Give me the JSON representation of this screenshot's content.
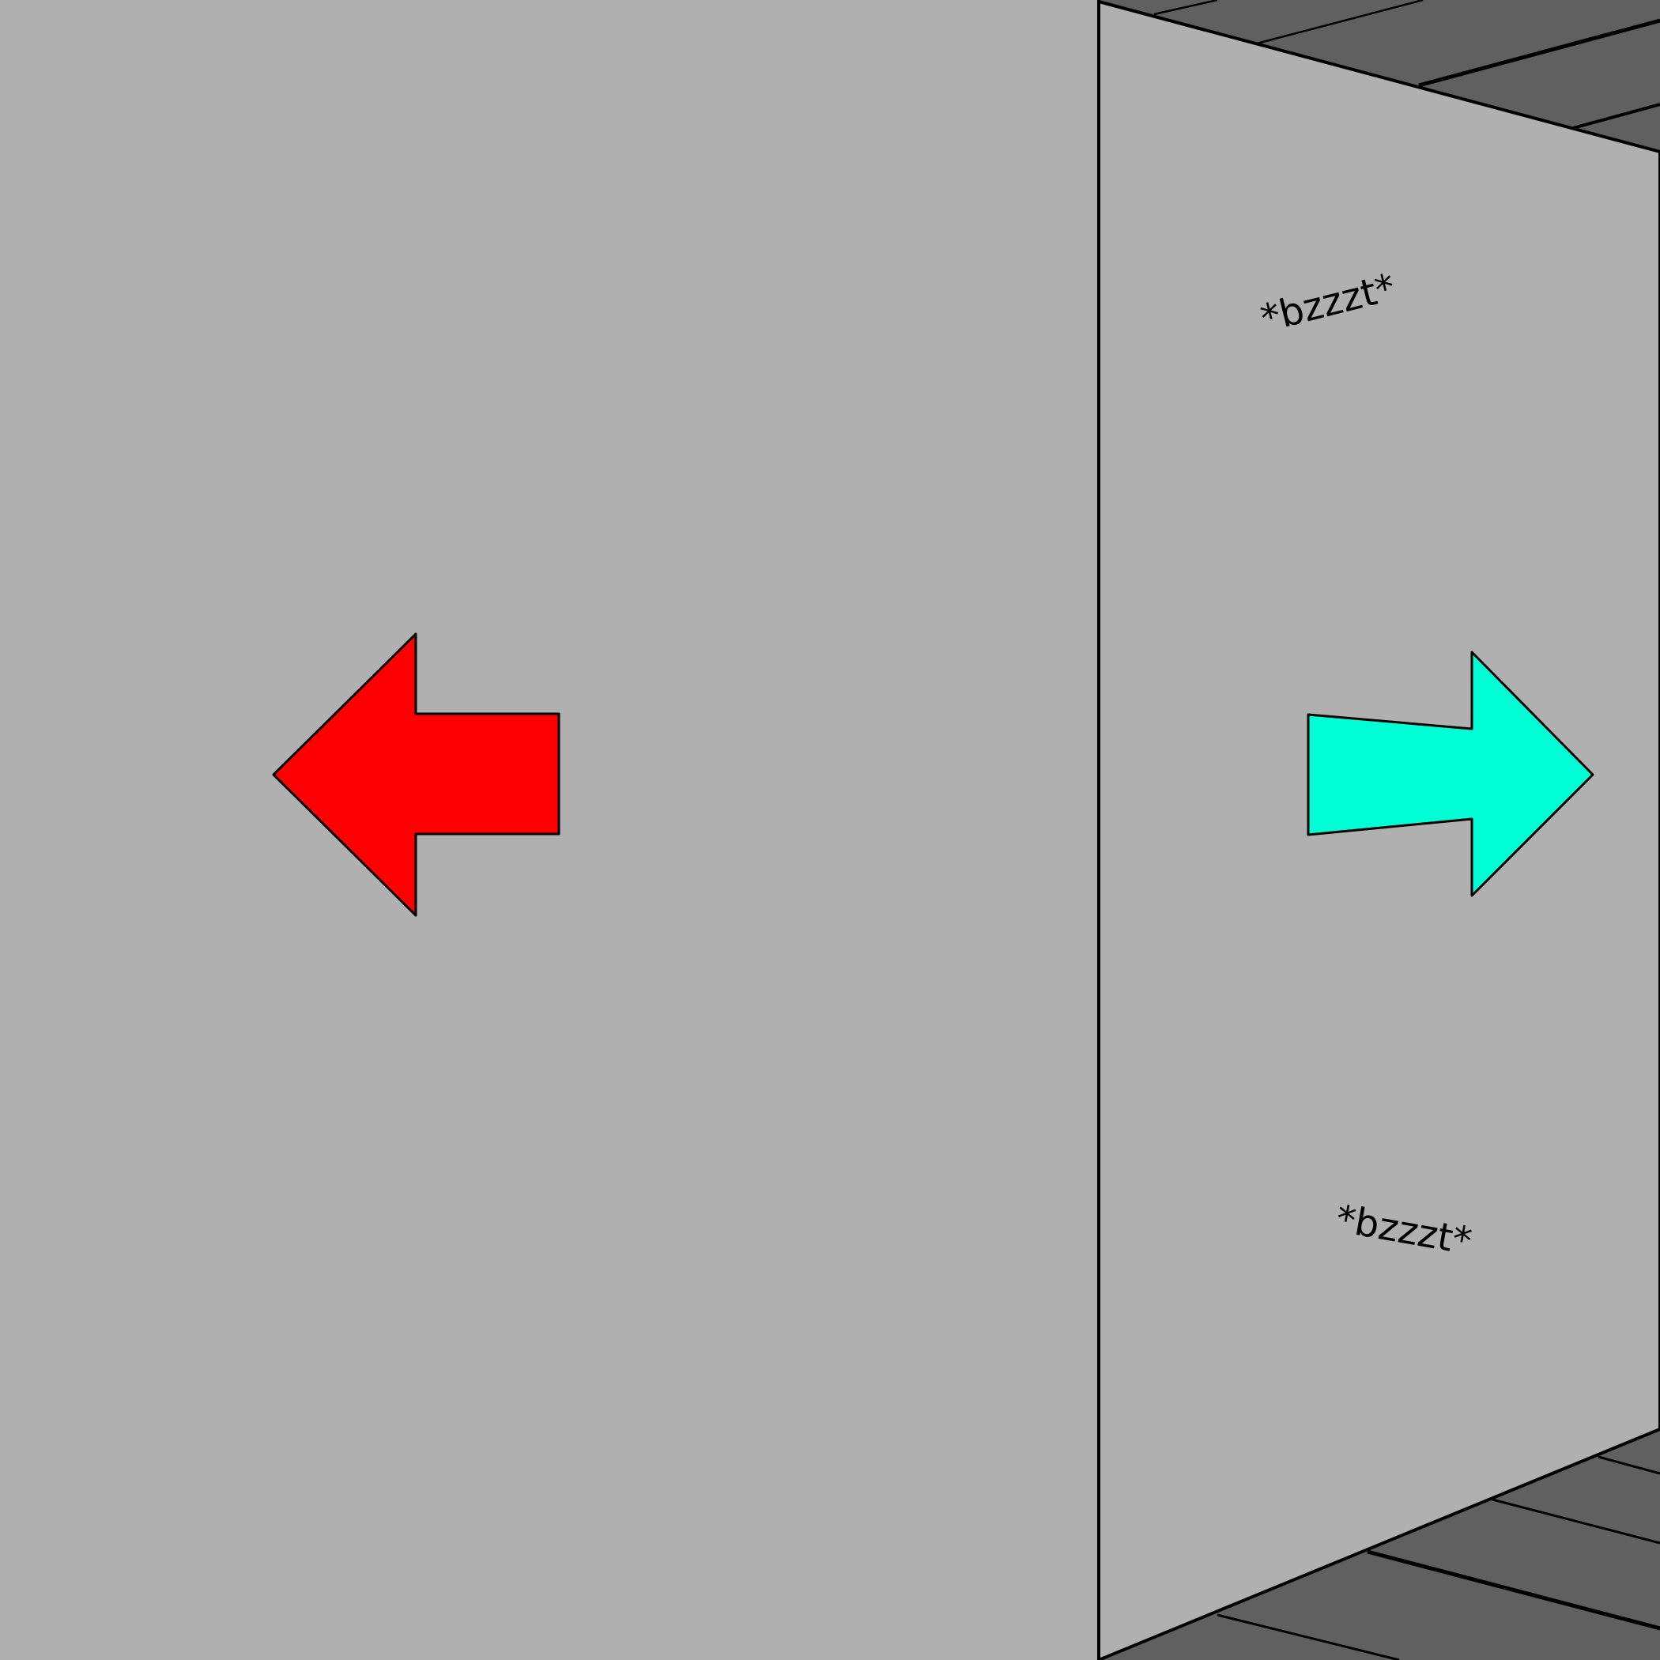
{
  "scene": {
    "left_wall": {
      "color": "#b0b0b0",
      "arrow": {
        "icon": "arrow-left-icon",
        "color": "#ff0000",
        "outline": "#000000"
      }
    },
    "right_wall": {
      "color": "#b0b0b0",
      "arrow": {
        "icon": "arrow-right-icon",
        "color": "#00ffd5",
        "outline": "#000000"
      },
      "captions": {
        "top": "*bzzzt*",
        "bottom": "*bzzzt*"
      }
    },
    "floor": {
      "color": "#606060"
    },
    "ceiling": {
      "color": "#606060"
    },
    "edge_color": "#000000"
  }
}
